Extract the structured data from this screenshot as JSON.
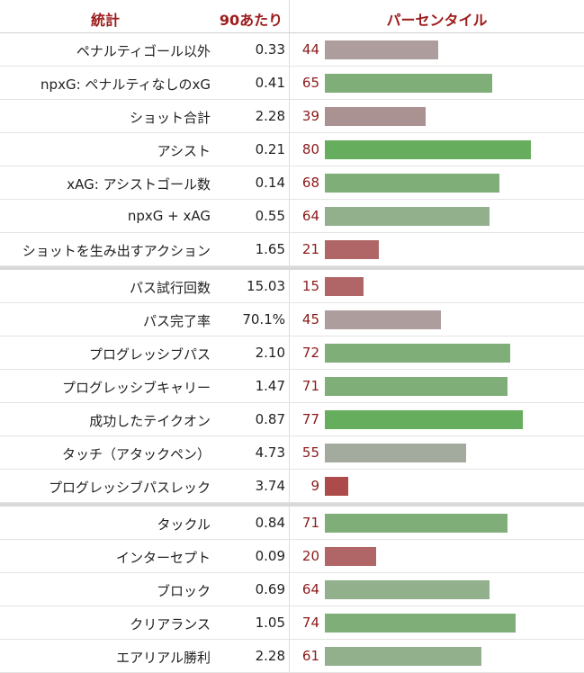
{
  "header": {
    "stat": "統計",
    "per90": "90あたり",
    "percentile": "パーセンタイル"
  },
  "colors": {
    "strong_green": "#66ad5e",
    "green": "#7fae78",
    "pale_green": "#93b08c",
    "grey_green": "#a3ab9f",
    "grey_red": "#ae9d9d",
    "dusty_red": "#ab9292",
    "red": "#b06666",
    "dark_red": "#ad4b4b",
    "text_red": "#8b1a1a"
  },
  "chart_data": {
    "type": "table",
    "groups": [
      {
        "rows": [
          {
            "stat": "ペナルティゴール以外",
            "per90": "0.33",
            "percentile": 44
          },
          {
            "stat": "npxG: ペナルティなしのxG",
            "per90": "0.41",
            "percentile": 65
          },
          {
            "stat": "ショット合計",
            "per90": "2.28",
            "percentile": 39
          },
          {
            "stat": "アシスト",
            "per90": "0.21",
            "percentile": 80
          },
          {
            "stat": "xAG: アシストゴール数",
            "per90": "0.14",
            "percentile": 68
          },
          {
            "stat": "npxG + xAG",
            "per90": "0.55",
            "percentile": 64
          },
          {
            "stat": "ショットを生み出すアクション",
            "per90": "1.65",
            "percentile": 21
          }
        ]
      },
      {
        "rows": [
          {
            "stat": "パス試行回数",
            "per90": "15.03",
            "percentile": 15
          },
          {
            "stat": "パス完了率",
            "per90": "70.1%",
            "percentile": 45
          },
          {
            "stat": "プログレッシブパス",
            "per90": "2.10",
            "percentile": 72
          },
          {
            "stat": "プログレッシブキャリー",
            "per90": "1.47",
            "percentile": 71
          },
          {
            "stat": "成功したテイクオン",
            "per90": "0.87",
            "percentile": 77
          },
          {
            "stat": "タッチ（アタックペン）",
            "per90": "4.73",
            "percentile": 55
          },
          {
            "stat": "プログレッシブパスレック",
            "per90": "3.74",
            "percentile": 9
          }
        ]
      },
      {
        "rows": [
          {
            "stat": "タックル",
            "per90": "0.84",
            "percentile": 71
          },
          {
            "stat": "インターセプト",
            "per90": "0.09",
            "percentile": 20
          },
          {
            "stat": "ブロック",
            "per90": "0.69",
            "percentile": 64
          },
          {
            "stat": "クリアランス",
            "per90": "1.05",
            "percentile": 74
          },
          {
            "stat": "エアリアル勝利",
            "per90": "2.28",
            "percentile": 61
          }
        ]
      }
    ],
    "xlim": [
      0,
      100
    ]
  }
}
